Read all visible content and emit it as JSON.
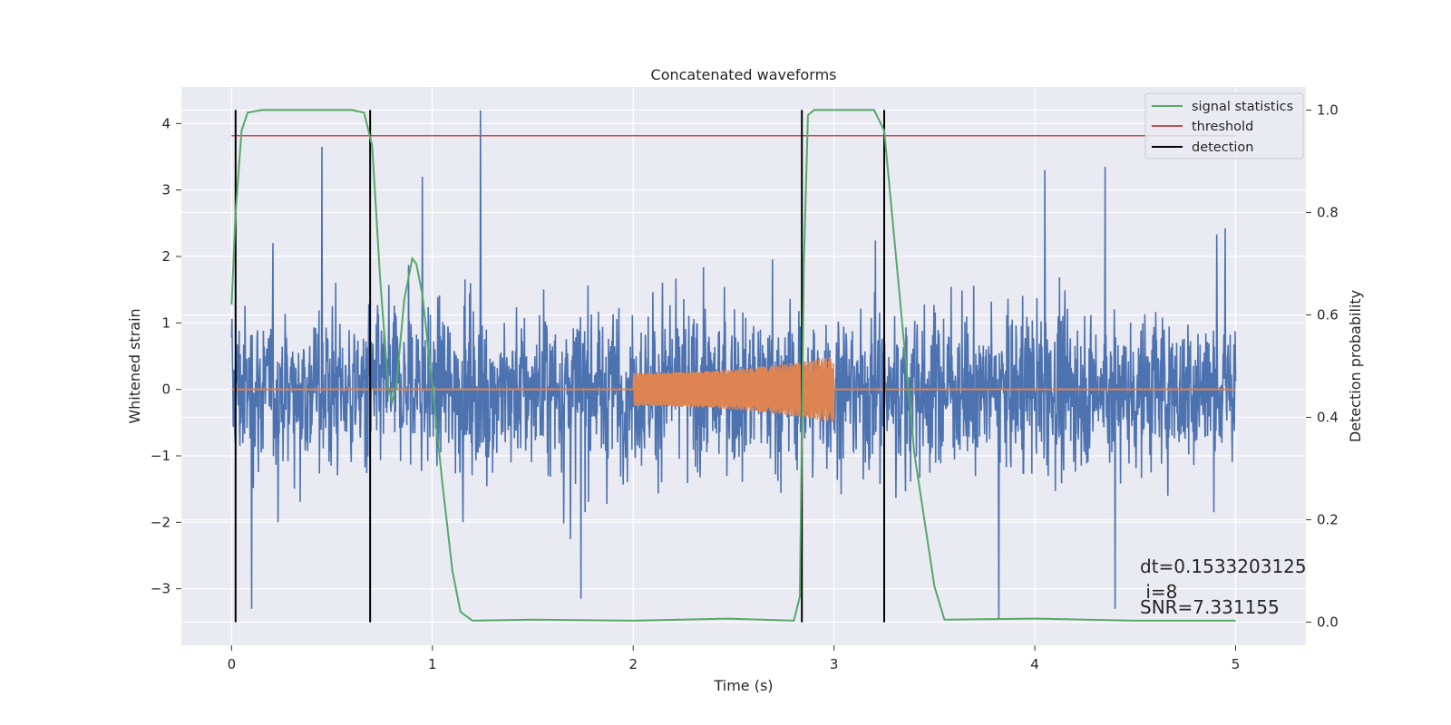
{
  "chart_data": {
    "type": "line",
    "title": "Concatenated waveforms",
    "xlabel": "Time (s)",
    "ylabel_left": "Whitened strain",
    "ylabel_right": "Detection probability",
    "xlim": [
      -0.25,
      5.35
    ],
    "ylim_left": [
      -3.85,
      4.55
    ],
    "ylim_right": [
      -0.045,
      1.045
    ],
    "x_ticks": [
      0,
      1,
      2,
      3,
      4,
      5
    ],
    "x_tick_labels": [
      "0",
      "1",
      "2",
      "3",
      "4",
      "5"
    ],
    "y_left_ticks": [
      -3,
      -2,
      -1,
      0,
      1,
      2,
      3,
      4
    ],
    "y_left_tick_labels": [
      "−3",
      "−2",
      "−1",
      "0",
      "1",
      "2",
      "3",
      "4"
    ],
    "y_right_ticks": [
      0.0,
      0.2,
      0.4,
      0.6,
      0.8,
      1.0
    ],
    "y_right_tick_labels": [
      "0.0",
      "0.2",
      "0.4",
      "0.6",
      "0.8",
      "1.0"
    ],
    "grid": true,
    "legend_position": "top-right",
    "noise": {
      "color": "#4c72b0",
      "x_range": [
        0,
        5
      ],
      "typical_amplitude": 1.1,
      "peak_max": 4.2,
      "peak_min": -3.5,
      "peaks": [
        {
          "x": 0.45,
          "y": 3.65
        },
        {
          "x": 0.95,
          "y": 3.2
        },
        {
          "x": 1.24,
          "y": 4.2
        },
        {
          "x": 4.05,
          "y": 3.3
        },
        {
          "x": 4.35,
          "y": 3.35
        },
        {
          "x": 0.1,
          "y": -3.3
        },
        {
          "x": 1.74,
          "y": -3.15
        },
        {
          "x": 3.82,
          "y": -3.45
        },
        {
          "x": 4.4,
          "y": -3.3
        }
      ]
    },
    "chirp": {
      "color": "#dd8452",
      "x_range": [
        2.0,
        3.0
      ],
      "amplitude_start": 0.25,
      "amplitude_end": 0.5
    },
    "signal_statistics": {
      "name": "signal statistics",
      "color": "#55a868",
      "x": [
        0,
        0.02,
        0.05,
        0.08,
        0.15,
        0.6,
        0.66,
        0.7,
        0.74,
        0.78,
        0.8,
        0.82,
        0.86,
        0.9,
        0.92,
        0.95,
        1.0,
        1.05,
        1.1,
        1.14,
        1.2,
        1.5,
        2.0,
        2.47,
        2.8,
        2.83,
        2.85,
        2.87,
        2.9,
        3.2,
        3.25,
        3.3,
        3.4,
        3.5,
        3.55,
        4.0,
        4.5,
        5.0
      ],
      "y": [
        0.62,
        0.8,
        0.96,
        0.995,
        1.0,
        1.0,
        0.995,
        0.93,
        0.67,
        0.46,
        0.43,
        0.46,
        0.63,
        0.71,
        0.7,
        0.64,
        0.46,
        0.27,
        0.1,
        0.02,
        0.003,
        0.005,
        0.003,
        0.007,
        0.003,
        0.05,
        0.7,
        0.99,
        1.0,
        1.0,
        0.96,
        0.75,
        0.33,
        0.07,
        0.005,
        0.007,
        0.003,
        0.003
      ]
    },
    "threshold": {
      "name": "threshold",
      "color": "#c44e52",
      "value": 0.95,
      "x_range": [
        0,
        5
      ]
    },
    "detections": {
      "name": "detection",
      "color": "#000000",
      "x": [
        0.02,
        0.69,
        2.84,
        3.25
      ],
      "y_range": [
        0.0,
        1.0
      ]
    },
    "annotations": {
      "dt": "dt=0.1533203125",
      "i": " i=8",
      "snr": "SNR=7.331155"
    }
  }
}
